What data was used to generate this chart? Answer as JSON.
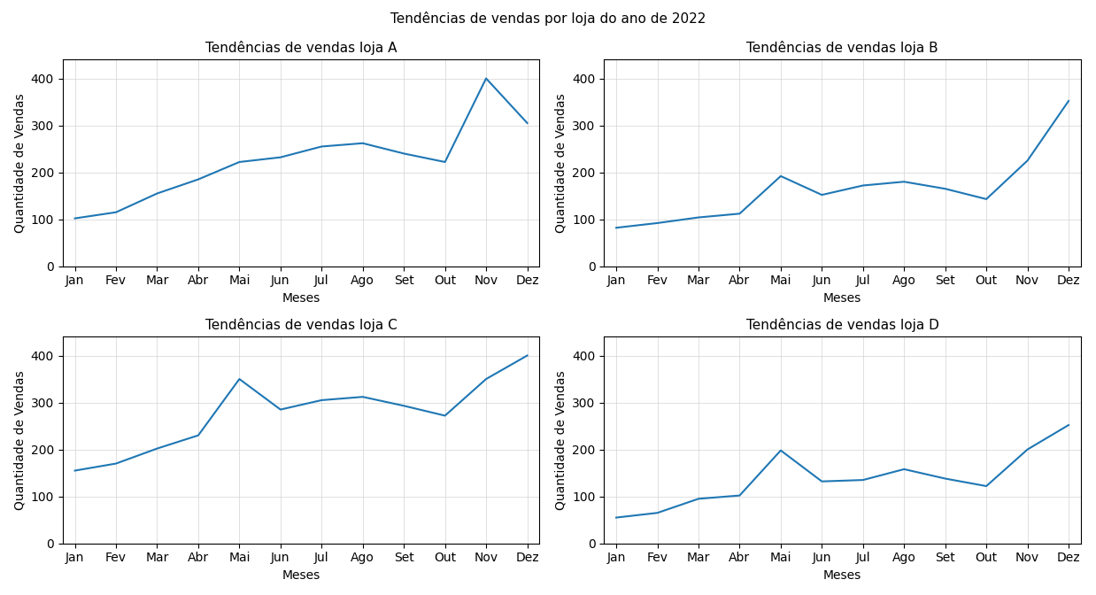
{
  "suptitle": "Tendências de vendas por loja do ano de 2022",
  "months": [
    "Jan",
    "Fev",
    "Mar",
    "Abr",
    "Mai",
    "Jun",
    "Jul",
    "Ago",
    "Set",
    "Out",
    "Nov",
    "Dez"
  ],
  "stores": [
    {
      "title": "Tendências de vendas loja A",
      "values": [
        102,
        115,
        155,
        185,
        222,
        232,
        255,
        262,
        240,
        222,
        400,
        305
      ]
    },
    {
      "title": "Tendências de vendas loja B",
      "values": [
        82,
        92,
        104,
        112,
        192,
        152,
        172,
        180,
        165,
        143,
        225,
        352
      ]
    },
    {
      "title": "Tendências de vendas loja C",
      "values": [
        155,
        170,
        202,
        230,
        350,
        285,
        305,
        312,
        293,
        272,
        350,
        400
      ]
    },
    {
      "title": "Tendências de vendas loja D",
      "values": [
        55,
        65,
        95,
        102,
        198,
        132,
        135,
        158,
        138,
        122,
        200,
        252
      ]
    }
  ],
  "xlabel": "Meses",
  "ylabel": "Quantidade de Vendas",
  "line_color": "#1f77b4",
  "ylim": [
    0,
    440
  ],
  "yticks": [
    0,
    100,
    200,
    300,
    400
  ],
  "figsize": [
    12.38,
    6.72
  ],
  "dpi": 100
}
